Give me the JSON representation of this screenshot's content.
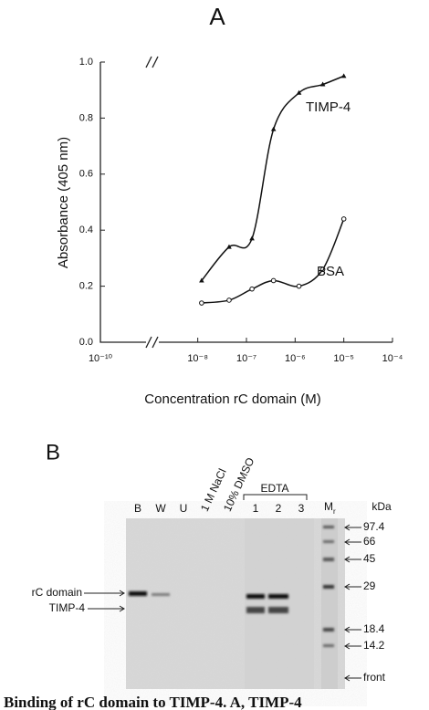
{
  "panel_labels": [
    "A",
    "B"
  ],
  "chart_data": {
    "type": "scatter",
    "log_x": true,
    "xlabel": "Concentration rC domain (M)",
    "ylabel": "Absorbance (405 nm)",
    "xlim": [
      1e-10,
      0.0001
    ],
    "xticks": [
      {
        "value": 1e-10,
        "label": "10⁻¹⁰"
      },
      {
        "value": 1e-08,
        "label": "10⁻⁸"
      },
      {
        "value": 1e-07,
        "label": "10⁻⁷"
      },
      {
        "value": 1e-06,
        "label": "10⁻⁶"
      },
      {
        "value": 1e-05,
        "label": "10⁻⁵"
      },
      {
        "value": 0.0001,
        "label": "10⁻⁴"
      }
    ],
    "ylim": [
      0,
      1.0
    ],
    "yticks": [
      {
        "value": 0,
        "label": "0.0"
      },
      0.2,
      0.4,
      0.6,
      0.8,
      {
        "value": 1.0,
        "label": "1.0"
      }
    ],
    "grid": false,
    "fit_line": true,
    "series": [
      {
        "name": "TIMP-4",
        "color": "#111111",
        "marker": "triangle",
        "x": [
          1.2e-08,
          4.4e-08,
          1.3e-07,
          3.6e-07,
          1.2e-06,
          3.7e-06,
          1e-05
        ],
        "values": [
          0.22,
          0.34,
          0.37,
          0.76,
          0.89,
          0.92,
          0.95
        ]
      },
      {
        "name": "BSA",
        "color": "#111111",
        "marker": "circle",
        "x": [
          1.2e-08,
          4.4e-08,
          1.3e-07,
          3.6e-07,
          1.2e-06,
          3.7e-06,
          1e-05
        ],
        "values": [
          0.14,
          0.15,
          0.19,
          0.22,
          0.2,
          0.26,
          0.44
        ]
      }
    ]
  },
  "gel": {
    "lanes": [
      "B",
      "W",
      "U",
      "1 M NaCl",
      "10% DMSO"
    ],
    "group_label": "EDTA",
    "group_lanes": [
      "1",
      "2",
      "3"
    ],
    "marker_lane": "M",
    "marker_lane_sub": "r",
    "unit": "kDa",
    "markers": [
      "97.4",
      "66",
      "45",
      "29",
      "18.4",
      "14.2",
      "front"
    ],
    "left_labels": [
      "rC domain",
      "TIMP-4"
    ]
  },
  "caption": "Binding of rC domain to TIMP-4. A, TIMP-4"
}
